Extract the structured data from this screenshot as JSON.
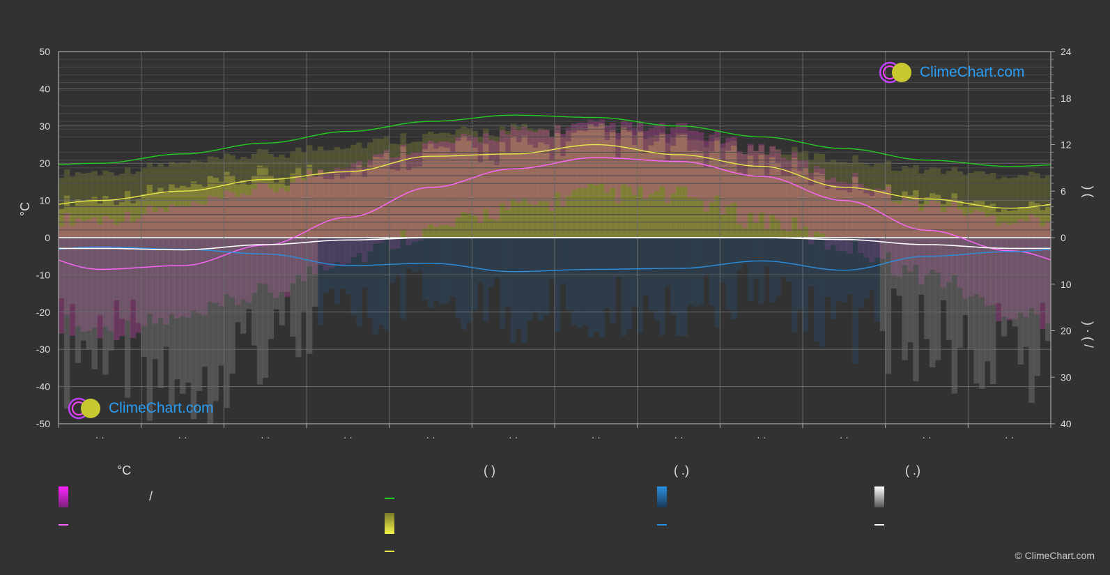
{
  "chart_data": {
    "type": "line",
    "y_left": {
      "label": "°C",
      "range": [
        -50,
        50
      ],
      "ticks": [
        "50",
        "40",
        "30",
        "20",
        "10",
        "0",
        "-10",
        "-20",
        "-30",
        "-40",
        "-50"
      ]
    },
    "y_right_top": {
      "range": [
        0,
        24
      ],
      "ticks": [
        "24",
        "18",
        "12",
        "6",
        "0"
      ],
      "label_glyphs": ")  ("
    },
    "y_right_bottom": {
      "range": [
        0,
        40
      ],
      "ticks": [
        "10",
        "20",
        "30",
        "40"
      ],
      "label_glyphs": ") · (  /"
    },
    "x_month_labels": [
      "· ·",
      "· ·",
      "· ·",
      "· ·",
      "· ·",
      "· ·",
      "· ·",
      "· ·",
      "· ·",
      "· ·",
      "· ·",
      "· ·"
    ],
    "grid": true,
    "months": 12,
    "series": [
      {
        "key": "daylight",
        "color": "#22cc22",
        "axis": "right_top_hours",
        "values": [
          9.6,
          10.8,
          12.2,
          13.7,
          15.0,
          15.8,
          15.5,
          14.4,
          13.0,
          11.5,
          10.0,
          9.2
        ]
      },
      {
        "key": "sunshine",
        "color": "#e8e84a",
        "axis": "right_top_hours",
        "values": [
          4.8,
          6.0,
          7.5,
          8.5,
          10.5,
          10.8,
          12.0,
          10.7,
          9.2,
          6.5,
          5.0,
          3.8
        ]
      },
      {
        "key": "avg_daily_temp",
        "color": "#ff66ff",
        "axis": "left_temp",
        "values": [
          -8.5,
          -7.5,
          -2.0,
          5.5,
          13.5,
          18.5,
          21.5,
          20.5,
          16.5,
          10.0,
          2.0,
          -3.5
        ]
      },
      {
        "key": "rain",
        "color": "#2a8fe0",
        "axis": "right_bottom_mm",
        "values": [
          2.0,
          2.5,
          3.5,
          6.0,
          5.5,
          7.3,
          6.8,
          6.6,
          5.0,
          7.0,
          4.0,
          3.0
        ]
      },
      {
        "key": "snow",
        "color": "#ffffff",
        "axis": "right_bottom_mm",
        "values": [
          2.3,
          2.6,
          1.5,
          0.5,
          0.0,
          0.0,
          0.0,
          0.0,
          0.0,
          0.4,
          1.5,
          2.3
        ]
      }
    ],
    "ranges": {
      "temp_max": [
        5,
        8,
        13,
        20,
        25,
        28,
        30,
        29,
        24,
        16,
        9,
        5
      ],
      "temp_min": [
        -25,
        -22,
        -15,
        -5,
        2,
        8,
        12,
        11,
        5,
        -2,
        -10,
        -20
      ]
    }
  },
  "legend": {
    "col1": {
      "header": "°C",
      "row1_text": "/"
    },
    "col2": {
      "header": "(          )"
    },
    "col3": {
      "header": "(   .)"
    },
    "col4": {
      "header": "(   .)"
    }
  },
  "logo_text": "ClimeChart.com",
  "copyright": "© ClimeChart.com",
  "colors": {
    "background": "#323232",
    "daylight": "#22cc22",
    "sunshine": "#e8e84a",
    "temperature": "#ff66ff",
    "rain": "#2a8fe0",
    "snow": "#ffffff",
    "logo": "#2a9df4"
  }
}
